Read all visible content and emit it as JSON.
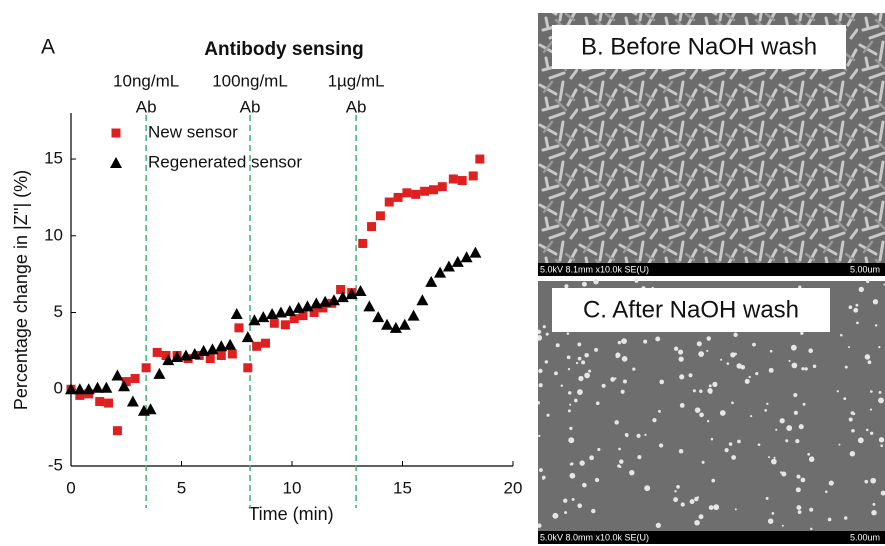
{
  "chart_data": {
    "type": "scatter",
    "panel_label": "A",
    "title": "Antibody sensing",
    "x_label": "Time (min)",
    "y_label": "Percentage change in |Z''| (%)",
    "xlim": [
      0,
      20
    ],
    "ylim": [
      -5,
      18
    ],
    "xticks": [
      0,
      5,
      10,
      15,
      20
    ],
    "yticks": [
      -5,
      0,
      5,
      10,
      15
    ],
    "legend": "upper left",
    "annotations": [
      {
        "lines": [
          "10ng/mL",
          "Ab"
        ],
        "x": 3.4,
        "color": "#3cb371"
      },
      {
        "lines": [
          "100ng/mL",
          "Ab"
        ],
        "x": 8.1,
        "color": "#3cb371"
      },
      {
        "lines": [
          "1µg/mL",
          "Ab"
        ],
        "x": 12.9,
        "color": "#3cb371"
      }
    ],
    "series": [
      {
        "name": "New sensor",
        "color": "#e02020",
        "marker": "square",
        "x": [
          0,
          0.4,
          0.8,
          1.3,
          1.7,
          2.1,
          2.5,
          2.9,
          3.4,
          3.9,
          4.3,
          4.8,
          5.3,
          5.8,
          6.3,
          6.8,
          7.3,
          7.6,
          8.0,
          8.4,
          8.8,
          9.2,
          9.7,
          10.1,
          10.5,
          11.0,
          11.4,
          11.8,
          12.2,
          12.7,
          13.2,
          13.6,
          14.0,
          14.4,
          14.8,
          15.2,
          15.6,
          16.0,
          16.4,
          16.8,
          17.3,
          17.7,
          18.2,
          18.5
        ],
        "values": [
          0,
          -0.4,
          -0.3,
          -0.8,
          -0.9,
          -2.7,
          0.5,
          0.7,
          1.4,
          2.4,
          2.2,
          2.2,
          2.0,
          2.2,
          2.0,
          2.2,
          2.3,
          4.0,
          1.4,
          2.8,
          3.0,
          4.3,
          4.2,
          4.6,
          4.8,
          5.0,
          5.3,
          5.6,
          6.5,
          6.3,
          9.5,
          10.6,
          11.3,
          12.2,
          12.5,
          12.8,
          12.7,
          12.9,
          13.0,
          13.2,
          13.7,
          13.6,
          13.9,
          15.0
        ]
      },
      {
        "name": "Regenerated sensor",
        "color": "#000000",
        "marker": "triangle",
        "x": [
          0,
          0.4,
          0.8,
          1.2,
          1.6,
          2.1,
          2.4,
          2.8,
          3.3,
          3.6,
          4.0,
          4.4,
          4.8,
          5.2,
          5.6,
          6.0,
          6.4,
          6.8,
          7.2,
          7.5,
          8.0,
          8.3,
          8.7,
          9.1,
          9.5,
          9.9,
          10.3,
          10.7,
          11.1,
          11.5,
          11.9,
          12.3,
          12.7,
          13.1,
          13.5,
          13.9,
          14.3,
          14.7,
          15.1,
          15.5,
          15.9,
          16.3,
          16.7,
          17.1,
          17.5,
          17.9,
          18.3
        ],
        "values": [
          0,
          0,
          0,
          0.1,
          0.1,
          0.9,
          0.2,
          -0.8,
          -1.4,
          -1.3,
          1.0,
          1.9,
          2.1,
          2.2,
          2.3,
          2.5,
          2.6,
          2.8,
          2.9,
          4.9,
          3.4,
          4.5,
          4.7,
          4.9,
          5.0,
          5.1,
          5.3,
          5.4,
          5.6,
          5.7,
          5.8,
          6.0,
          6.2,
          6.4,
          5.4,
          4.7,
          4.2,
          4.0,
          4.2,
          4.8,
          5.8,
          7.0,
          7.6,
          8.0,
          8.3,
          8.6,
          8.9
        ]
      }
    ]
  },
  "panels": [
    {
      "label": "B. Before NaOH wash",
      "info": "5.0kV 8.1mm x10.0k SE(U)",
      "scale": "5.00um"
    },
    {
      "label": "C. After NaOH wash",
      "info": "5.0kV 8.0mm x10.0k SE(U)",
      "scale": "5.00um"
    }
  ]
}
